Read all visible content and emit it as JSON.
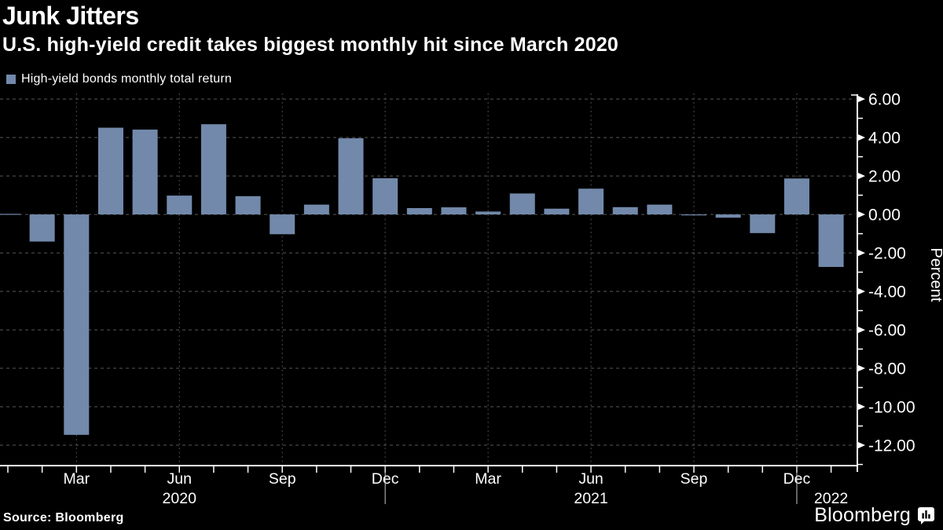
{
  "header": {
    "title": "Junk Jitters",
    "subtitle": "U.S. high-yield credit takes biggest monthly hit since March 2020"
  },
  "legend": {
    "label": "High-yield bonds monthly total return",
    "color": "#7289AB"
  },
  "chart_data": {
    "type": "bar",
    "title": "Junk Jitters",
    "subtitle": "U.S. high-yield credit takes biggest monthly hit since March 2020",
    "series": [
      {
        "name": "High-yield bonds monthly total return",
        "x": [
          "Jan 2020",
          "Feb 2020",
          "Mar 2020",
          "Apr 2020",
          "May 2020",
          "Jun 2020",
          "Jul 2020",
          "Aug 2020",
          "Sep 2020",
          "Oct 2020",
          "Nov 2020",
          "Dec 2020",
          "Jan 2021",
          "Feb 2021",
          "Mar 2021",
          "Apr 2021",
          "May 2021",
          "Jun 2021",
          "Jul 2021",
          "Aug 2021",
          "Sep 2021",
          "Oct 2021",
          "Nov 2021",
          "Dec 2021",
          "Jan 2022"
        ],
        "values": [
          0.03,
          -1.41,
          -11.46,
          4.51,
          4.41,
          0.98,
          4.69,
          0.95,
          -1.03,
          0.51,
          3.96,
          1.88,
          0.33,
          0.37,
          0.15,
          1.09,
          0.3,
          1.34,
          0.38,
          0.51,
          -0.01,
          -0.17,
          -0.97,
          1.87,
          -2.73
        ]
      }
    ],
    "xlabel": "",
    "ylabel": "Percent",
    "ylim": [
      -13.06,
      6.25
    ],
    "y_major_ticks": [
      6,
      4,
      2,
      0,
      -2,
      -4,
      -6,
      -8,
      -10,
      -12
    ],
    "y_minor_ticks": [
      5,
      3,
      1,
      -1,
      -3,
      -5,
      -7,
      -9,
      -11,
      -13
    ],
    "y_tick_decimals": 2,
    "x_tick_labels": [
      {
        "index": 2,
        "label": "Mar"
      },
      {
        "index": 5,
        "label": "Jun"
      },
      {
        "index": 8,
        "label": "Sep"
      },
      {
        "index": 11,
        "label": "Dec"
      },
      {
        "index": 14,
        "label": "Mar"
      },
      {
        "index": 17,
        "label": "Jun"
      },
      {
        "index": 20,
        "label": "Sep"
      },
      {
        "index": 23,
        "label": "Dec"
      }
    ],
    "year_labels": [
      {
        "index": 5,
        "label": "2020"
      },
      {
        "index": 17,
        "label": "2021"
      },
      {
        "index": 24,
        "label": "2022"
      }
    ],
    "year_separator_indices": [
      11,
      23
    ],
    "bar_color": "#7289AB",
    "grid": {
      "horizontal": "dashed",
      "vertical": "dotted-at-quarters"
    },
    "legend_position": "top-left",
    "axis_side": "right"
  },
  "footer": {
    "source": "Source: Bloomberg",
    "brand": "Bloomberg"
  }
}
